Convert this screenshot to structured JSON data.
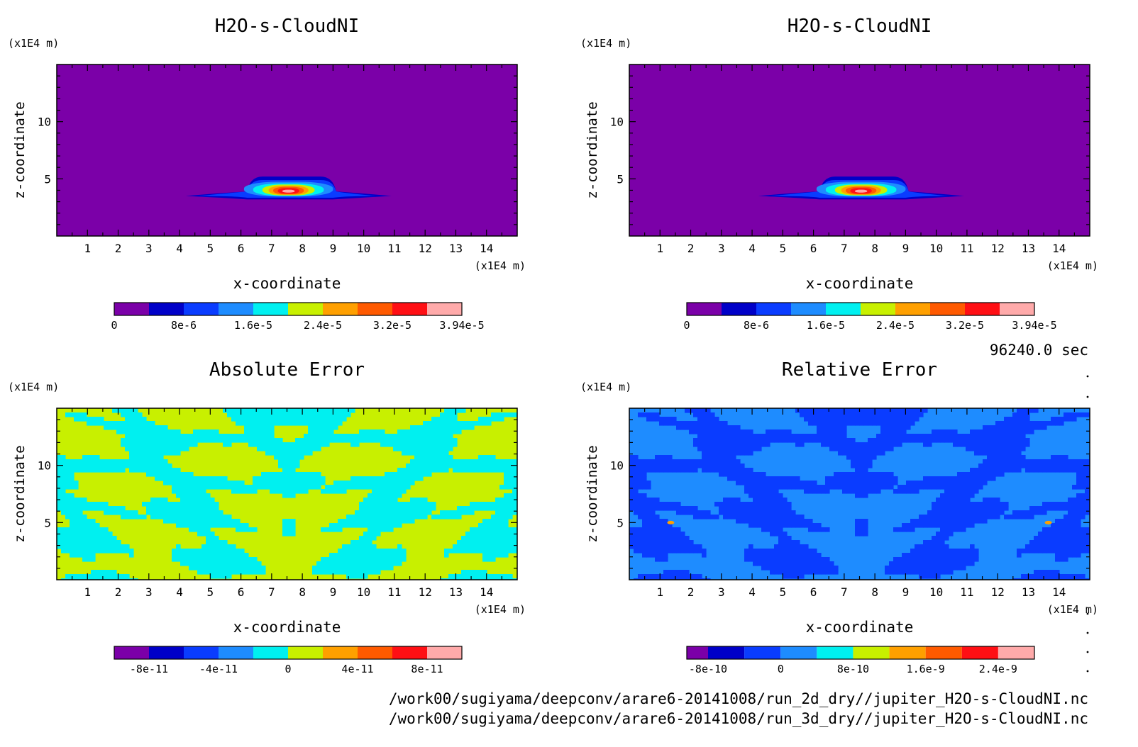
{
  "time_label": "96240.0 sec",
  "file_paths": [
    "/work00/sugiyama/deepconv/arare6-20141008/run_2d_dry//jupiter_H2O-s-CloudNI.nc",
    "/work00/sugiyama/deepconv/arare6-20141008/run_3d_dry//jupiter_H2O-s-CloudNI.nc"
  ],
  "chart_data": [
    {
      "type": "heatmap",
      "title": "H2O-s-CloudNI",
      "xlabel": "x-coordinate",
      "ylabel": "z-coordinate",
      "x_unit": "(x1E4 m)",
      "y_unit": "(x1E4 m)",
      "xlim": [
        0,
        15
      ],
      "ylim": [
        0,
        15
      ],
      "x_ticks": [
        "1",
        "2",
        "3",
        "4",
        "5",
        "6",
        "7",
        "8",
        "9",
        "10",
        "11",
        "12",
        "13",
        "14"
      ],
      "y_ticks": [
        "5",
        "10"
      ],
      "field": "cloud",
      "colorbar": {
        "colors": [
          "#7b00a8",
          "#0000c8",
          "#0a3cff",
          "#1e8cff",
          "#00f0f0",
          "#c8f000",
          "#ffa000",
          "#ff5a00",
          "#ff0f14",
          "#ffaaaa"
        ],
        "labels": [
          "0",
          "8e-6",
          "1.6e-5",
          "2.4e-5",
          "3.2e-5",
          "3.94e-5"
        ],
        "max": 3.94e-05
      }
    },
    {
      "type": "heatmap",
      "title": "H2O-s-CloudNI",
      "xlabel": "x-coordinate",
      "ylabel": "z-coordinate",
      "x_unit": "(x1E4 m)",
      "y_unit": "(x1E4 m)",
      "xlim": [
        0,
        15
      ],
      "ylim": [
        0,
        15
      ],
      "x_ticks": [
        "1",
        "2",
        "3",
        "4",
        "5",
        "6",
        "7",
        "8",
        "9",
        "10",
        "11",
        "12",
        "13",
        "14"
      ],
      "y_ticks": [
        "5",
        "10"
      ],
      "field": "cloud",
      "colorbar": {
        "colors": [
          "#7b00a8",
          "#0000c8",
          "#0a3cff",
          "#1e8cff",
          "#00f0f0",
          "#c8f000",
          "#ffa000",
          "#ff5a00",
          "#ff0f14",
          "#ffaaaa"
        ],
        "labels": [
          "0",
          "8e-6",
          "1.6e-5",
          "2.4e-5",
          "3.2e-5",
          "3.94e-5"
        ],
        "max": 3.94e-05
      }
    },
    {
      "type": "heatmap",
      "title": "Absolute Error",
      "xlabel": "x-coordinate",
      "ylabel": "z-coordinate",
      "x_unit": "(x1E4 m)",
      "y_unit": "(x1E4 m)",
      "xlim": [
        0,
        15
      ],
      "ylim": [
        0,
        15
      ],
      "x_ticks": [
        "1",
        "2",
        "3",
        "4",
        "5",
        "6",
        "7",
        "8",
        "9",
        "10",
        "11",
        "12",
        "13",
        "14"
      ],
      "y_ticks": [
        "5",
        "10"
      ],
      "field": "noise",
      "field_colors": [
        "#c8f000",
        "#00f0f0"
      ],
      "colorbar": {
        "colors": [
          "#7b00a8",
          "#0000c8",
          "#0a3cff",
          "#1e8cff",
          "#00f0f0",
          "#c8f000",
          "#ffa000",
          "#ff5a00",
          "#ff0f14",
          "#ffaaaa"
        ],
        "labels": [
          "-8e-11",
          "-4e-11",
          "0",
          "4e-11",
          "8e-11"
        ]
      }
    },
    {
      "type": "heatmap",
      "title": "Relative Error",
      "xlabel": "x-coordinate",
      "ylabel": "z-coordinate",
      "x_unit": "(x1E4 m)",
      "y_unit": "(x1E4 m)",
      "xlim": [
        0,
        15
      ],
      "ylim": [
        0,
        15
      ],
      "x_ticks": [
        "1",
        "2",
        "3",
        "4",
        "5",
        "6",
        "7",
        "8",
        "9",
        "10",
        "11",
        "12",
        "13",
        "14"
      ],
      "y_ticks": [
        "5",
        "10"
      ],
      "field": "noise",
      "field_colors": [
        "#1e8cff",
        "#0a3cff"
      ],
      "colorbar": {
        "colors": [
          "#7b00a8",
          "#0000c8",
          "#0a3cff",
          "#1e8cff",
          "#00f0f0",
          "#c8f000",
          "#ffa000",
          "#ff5a00",
          "#ff0f14",
          "#ffaaaa"
        ],
        "labels": [
          "-8e-10",
          "0",
          "8e-10",
          "1.6e-9",
          "2.4e-9"
        ]
      }
    }
  ]
}
